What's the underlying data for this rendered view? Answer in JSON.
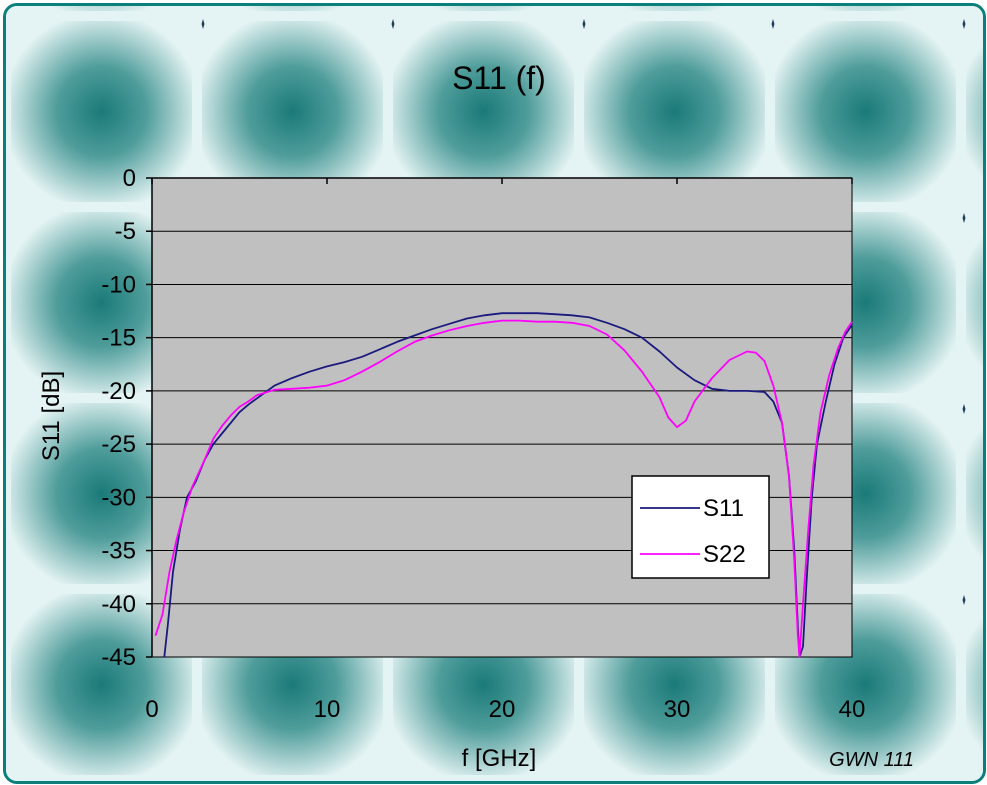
{
  "chart_data": {
    "type": "line",
    "title": "S11 (f)",
    "xlabel": "f [GHz]",
    "ylabel": "S11 [dB]",
    "xlim": [
      0,
      40
    ],
    "ylim": [
      -45,
      0
    ],
    "x_ticks": [
      0,
      10,
      20,
      30,
      40
    ],
    "y_ticks": [
      0,
      -5,
      -10,
      -15,
      -20,
      -25,
      -30,
      -35,
      -40,
      -45
    ],
    "grid": "horizontal",
    "legend_position": "lower-right",
    "annotation": "GWN 111",
    "colors": {
      "plot_bg": "#c0c0c0",
      "border": "#0b7f7b",
      "tile_dark": "#1f7f7d",
      "tile_light": "#e4f3f3"
    },
    "series": [
      {
        "name": "S11",
        "color": "#1a1a7e",
        "points": [
          [
            0.7,
            -45
          ],
          [
            0.9,
            -42
          ],
          [
            1.2,
            -37
          ],
          [
            1.6,
            -33
          ],
          [
            2,
            -30
          ],
          [
            2.5,
            -28.5
          ],
          [
            3,
            -26.5
          ],
          [
            3.5,
            -25
          ],
          [
            4,
            -24
          ],
          [
            4.5,
            -23
          ],
          [
            5,
            -22
          ],
          [
            5.5,
            -21.3
          ],
          [
            6,
            -20.7
          ],
          [
            7,
            -19.5
          ],
          [
            8,
            -18.8
          ],
          [
            9,
            -18.2
          ],
          [
            10,
            -17.7
          ],
          [
            11,
            -17.3
          ],
          [
            12,
            -16.8
          ],
          [
            13,
            -16.1
          ],
          [
            14,
            -15.4
          ],
          [
            15,
            -14.8
          ],
          [
            16,
            -14.2
          ],
          [
            17,
            -13.7
          ],
          [
            18,
            -13.2
          ],
          [
            19,
            -12.9
          ],
          [
            20,
            -12.7
          ],
          [
            21,
            -12.7
          ],
          [
            22,
            -12.7
          ],
          [
            23,
            -12.8
          ],
          [
            24,
            -12.9
          ],
          [
            25,
            -13.1
          ],
          [
            26,
            -13.6
          ],
          [
            27,
            -14.2
          ],
          [
            28,
            -15.0
          ],
          [
            29,
            -16.3
          ],
          [
            30,
            -17.8
          ],
          [
            31,
            -19.0
          ],
          [
            32,
            -19.8
          ],
          [
            33,
            -20.0
          ],
          [
            34,
            -20.0
          ],
          [
            35,
            -20.1
          ],
          [
            35.5,
            -21
          ],
          [
            36,
            -23
          ],
          [
            36.4,
            -28
          ],
          [
            36.7,
            -35
          ],
          [
            36.9,
            -42
          ],
          [
            37,
            -45
          ],
          [
            37.2,
            -44
          ],
          [
            37.4,
            -38
          ],
          [
            37.7,
            -30
          ],
          [
            38,
            -25
          ],
          [
            38.5,
            -21
          ],
          [
            39,
            -17.5
          ],
          [
            39.5,
            -15
          ],
          [
            40,
            -13.8
          ]
        ]
      },
      {
        "name": "S22",
        "color": "#ff00ff",
        "points": [
          [
            0.2,
            -43
          ],
          [
            0.6,
            -41
          ],
          [
            1,
            -37
          ],
          [
            1.4,
            -34
          ],
          [
            1.8,
            -31.5
          ],
          [
            2.3,
            -29
          ],
          [
            3,
            -26.5
          ],
          [
            3.5,
            -24.5
          ],
          [
            4,
            -23.3
          ],
          [
            4.5,
            -22.3
          ],
          [
            5,
            -21.5
          ],
          [
            5.5,
            -21
          ],
          [
            6,
            -20.4
          ],
          [
            7,
            -19.9
          ],
          [
            8,
            -19.8
          ],
          [
            9,
            -19.7
          ],
          [
            10,
            -19.5
          ],
          [
            11,
            -19.0
          ],
          [
            12,
            -18.2
          ],
          [
            13,
            -17.3
          ],
          [
            14,
            -16.3
          ],
          [
            15,
            -15.4
          ],
          [
            16,
            -14.8
          ],
          [
            17,
            -14.3
          ],
          [
            18,
            -13.9
          ],
          [
            19,
            -13.6
          ],
          [
            20,
            -13.4
          ],
          [
            21,
            -13.4
          ],
          [
            22,
            -13.5
          ],
          [
            23,
            -13.5
          ],
          [
            24,
            -13.6
          ],
          [
            25,
            -13.9
          ],
          [
            26,
            -14.7
          ],
          [
            27,
            -16.2
          ],
          [
            28,
            -18.2
          ],
          [
            29,
            -20.6
          ],
          [
            29.5,
            -22.5
          ],
          [
            30,
            -23.4
          ],
          [
            30.5,
            -22.8
          ],
          [
            31,
            -21
          ],
          [
            32,
            -18.8
          ],
          [
            33,
            -17.1
          ],
          [
            34,
            -16.3
          ],
          [
            34.5,
            -16.4
          ],
          [
            35,
            -17.2
          ],
          [
            35.5,
            -19.5
          ],
          [
            36,
            -23
          ],
          [
            36.4,
            -28
          ],
          [
            36.7,
            -36
          ],
          [
            36.9,
            -43
          ],
          [
            37,
            -45
          ],
          [
            37.2,
            -40
          ],
          [
            37.5,
            -33
          ],
          [
            37.8,
            -27
          ],
          [
            38.2,
            -22
          ],
          [
            38.7,
            -18.5
          ],
          [
            39.2,
            -16
          ],
          [
            39.6,
            -14.5
          ],
          [
            40,
            -13.5
          ]
        ]
      }
    ]
  }
}
